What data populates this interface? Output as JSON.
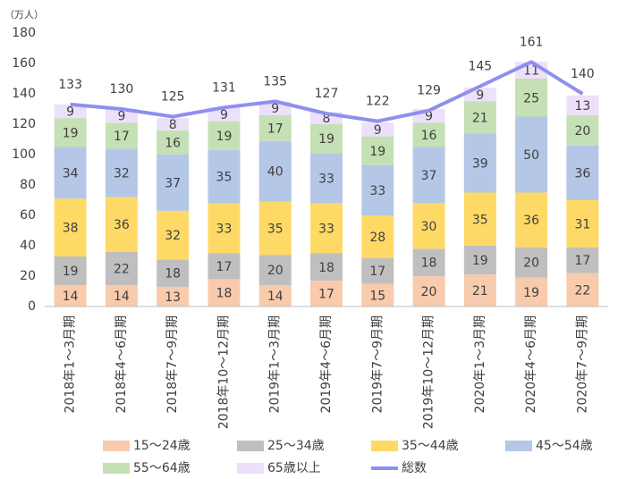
{
  "chart_data": {
    "type": "stacked_bar_line",
    "y_unit_label": "（万人）",
    "categories": [
      "2018年1～3月期",
      "2018年4～6月期",
      "2018年7～9月期",
      "2018年10～12月期",
      "2019年1～3月期",
      "2019年4～6月期",
      "2019年7～9月期",
      "2019年10～12月期",
      "2020年1～3月期",
      "2020年4～6月期",
      "2020年7～9月期"
    ],
    "series": [
      {
        "name": "15～24歳",
        "color": "#f8cbad",
        "values": [
          14,
          14,
          13,
          18,
          14,
          17,
          15,
          20,
          21,
          19,
          22
        ]
      },
      {
        "name": "25～34歳",
        "color": "#bfbfbf",
        "values": [
          19,
          22,
          18,
          17,
          20,
          18,
          17,
          18,
          19,
          20,
          17
        ]
      },
      {
        "name": "35～44歳",
        "color": "#ffd966",
        "values": [
          38,
          36,
          32,
          33,
          35,
          33,
          28,
          30,
          35,
          36,
          31
        ]
      },
      {
        "name": "45～54歳",
        "color": "#b4c7e7",
        "values": [
          34,
          32,
          37,
          35,
          40,
          33,
          33,
          37,
          39,
          50,
          36
        ]
      },
      {
        "name": "55～64歳",
        "color": "#c5e0b4",
        "values": [
          19,
          17,
          16,
          19,
          17,
          19,
          19,
          16,
          21,
          25,
          20
        ]
      },
      {
        "name": "65歳以上",
        "color": "#ece0fa",
        "values": [
          9,
          9,
          8,
          9,
          9,
          8,
          9,
          9,
          9,
          11,
          13
        ]
      }
    ],
    "line": {
      "name": "総数",
      "color": "#8f8ff0",
      "values": [
        133,
        130,
        125,
        131,
        135,
        127,
        122,
        129,
        145,
        161,
        140
      ]
    },
    "ylim": [
      0,
      180
    ],
    "yticks": [
      0,
      20,
      40,
      60,
      80,
      100,
      120,
      140,
      160,
      180
    ],
    "grid": false
  }
}
